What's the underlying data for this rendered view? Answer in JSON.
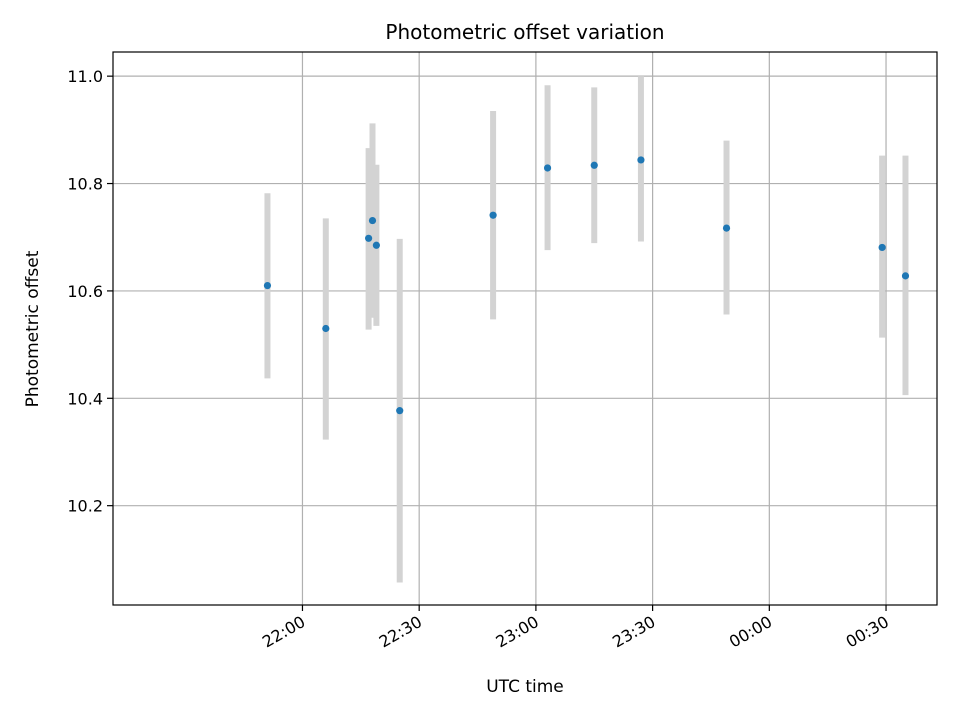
{
  "chart_data": {
    "type": "scatter",
    "title": "Photometric offset variation",
    "xlabel": "UTC time",
    "ylabel": "Photometric offset",
    "x_tick_labels": [
      "22:00",
      "22:30",
      "23:00",
      "23:30",
      "00:00",
      "00:30"
    ],
    "y_tick_labels": [
      "10.2",
      "10.4",
      "10.6",
      "10.8",
      "11.0"
    ],
    "y_ticks": [
      10.2,
      10.4,
      10.6,
      10.8,
      11.0
    ],
    "ylim": [
      10.015,
      11.045
    ],
    "grid": true,
    "colors": {
      "point": "#1f77b4",
      "error_bar": "#d3d3d3",
      "grid": "#b0b0b0"
    },
    "points": [
      {
        "time": "21:51",
        "y": 10.61,
        "err_low": 10.437,
        "err_high": 10.782
      },
      {
        "time": "22:06",
        "y": 10.53,
        "err_low": 10.323,
        "err_high": 10.735
      },
      {
        "time": "22:17",
        "y": 10.698,
        "err_low": 10.528,
        "err_high": 10.866
      },
      {
        "time": "22:18",
        "y": 10.731,
        "err_low": 10.55,
        "err_high": 10.912
      },
      {
        "time": "22:19",
        "y": 10.685,
        "err_low": 10.535,
        "err_high": 10.835
      },
      {
        "time": "22:25",
        "y": 10.377,
        "err_low": 10.057,
        "err_high": 10.697
      },
      {
        "time": "22:49",
        "y": 10.741,
        "err_low": 10.547,
        "err_high": 10.935
      },
      {
        "time": "23:03",
        "y": 10.829,
        "err_low": 10.676,
        "err_high": 10.983
      },
      {
        "time": "23:15",
        "y": 10.834,
        "err_low": 10.689,
        "err_high": 10.979
      },
      {
        "time": "23:27",
        "y": 10.844,
        "err_low": 10.692,
        "err_high": 11.0
      },
      {
        "time": "23:49",
        "y": 10.717,
        "err_low": 10.556,
        "err_high": 10.88
      },
      {
        "time": "00:29",
        "y": 10.681,
        "err_low": 10.513,
        "err_high": 10.852
      },
      {
        "time": "00:35",
        "y": 10.628,
        "err_low": 10.406,
        "err_high": 10.852
      }
    ]
  }
}
